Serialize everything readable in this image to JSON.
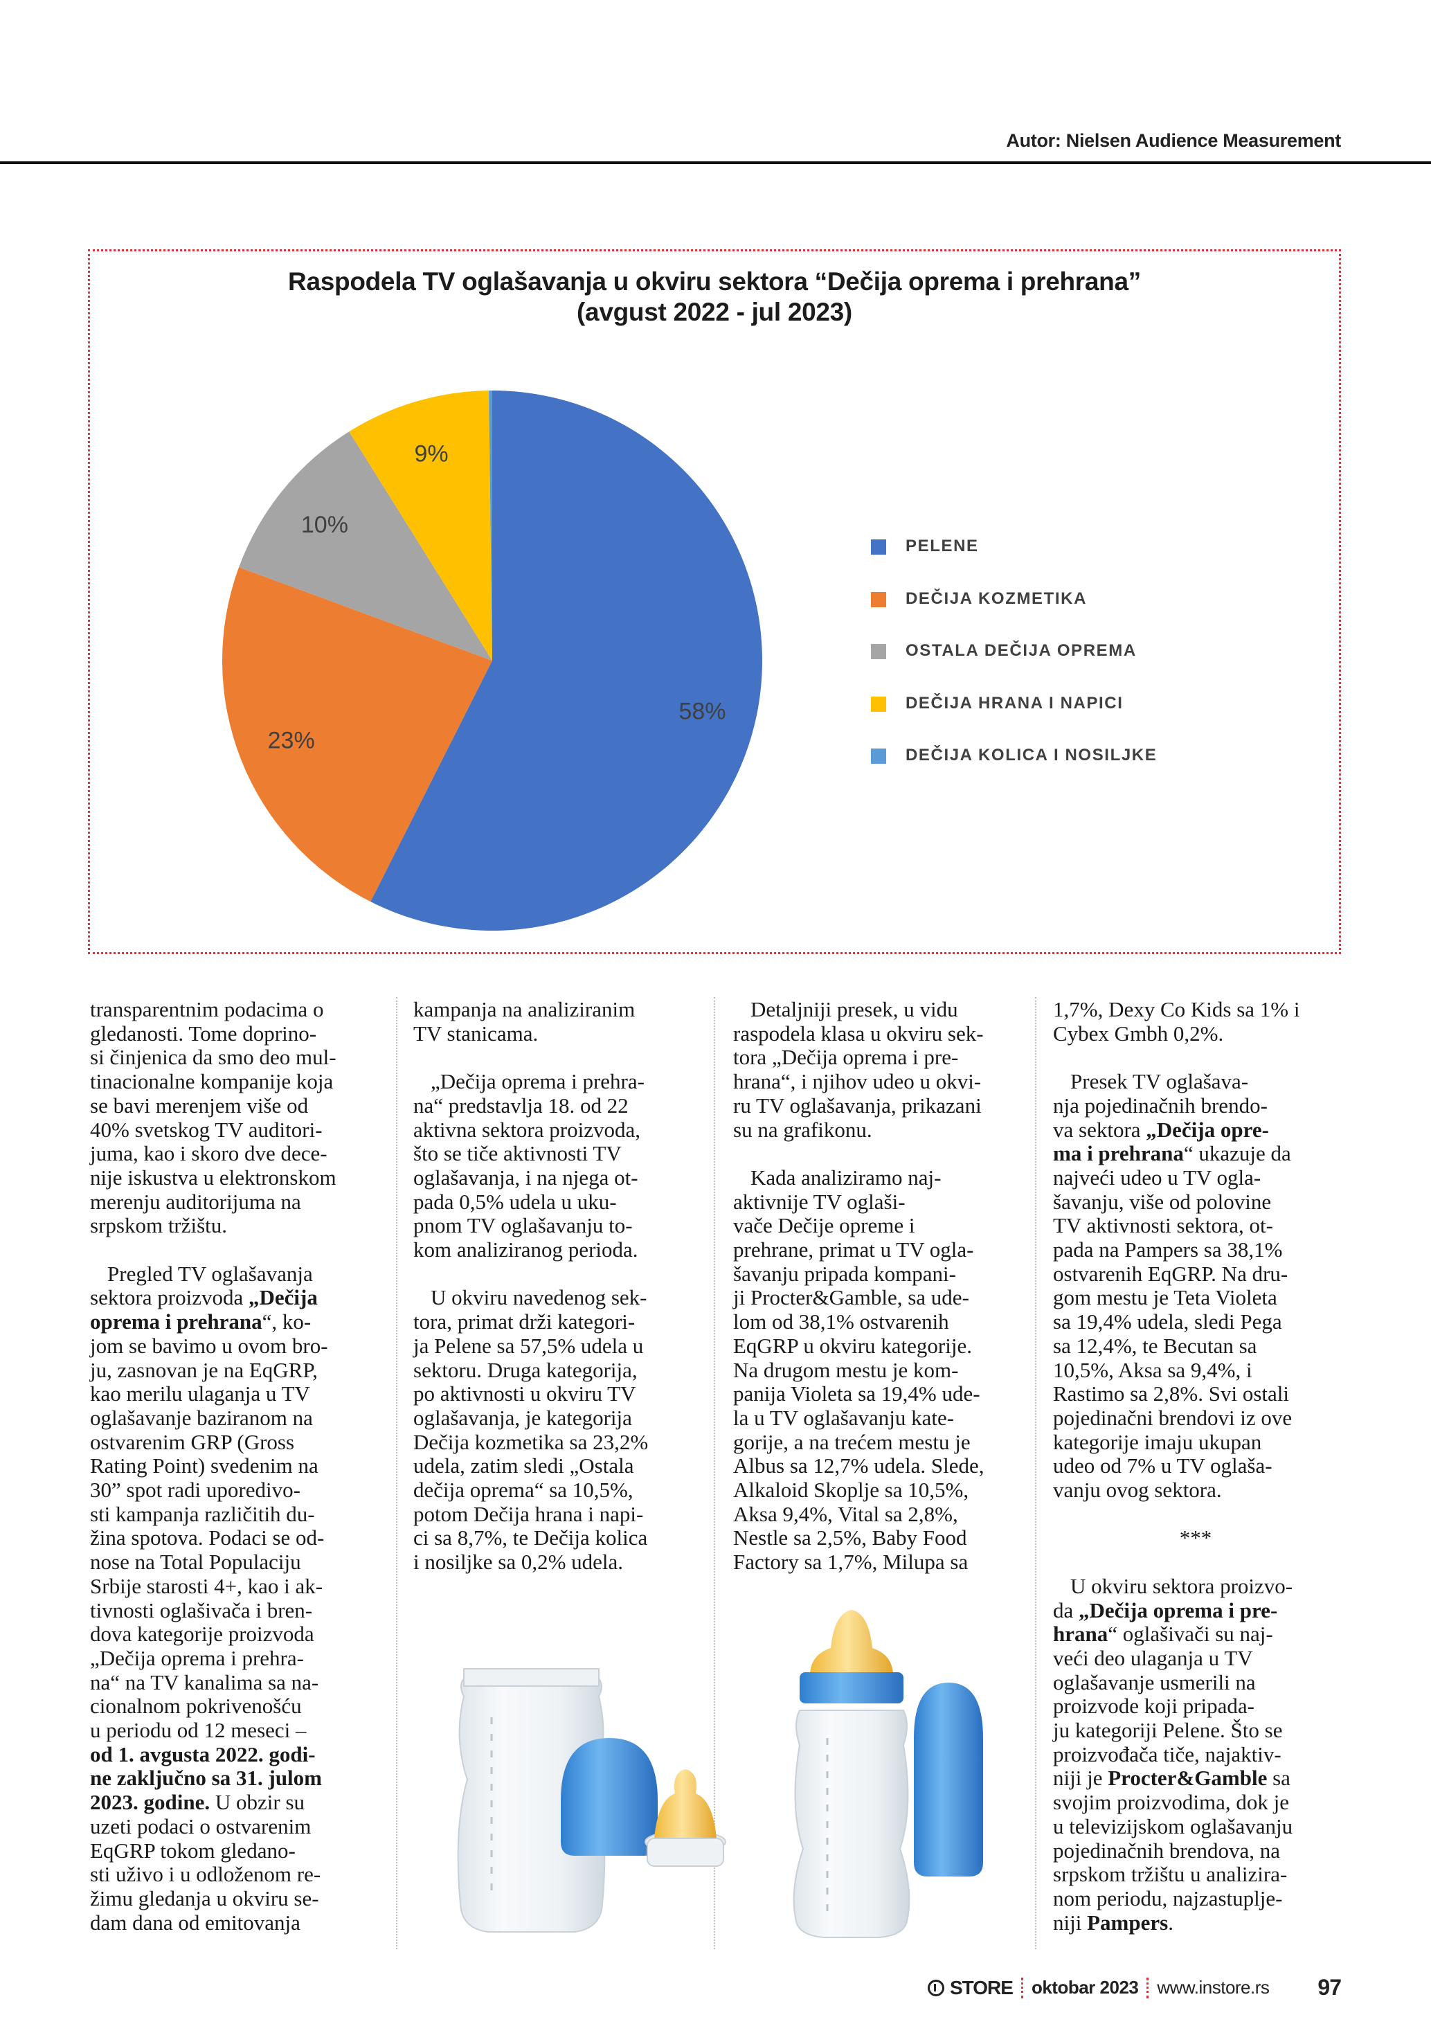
{
  "header": {
    "author": "Autor: Nielsen Audience Measurement"
  },
  "chart_data": {
    "type": "pie",
    "title": [
      "Raspodela TV oglašavanja u okviru sektora “Dečija oprema i prehrana”",
      "(avgust 2022 - jul 2023)"
    ],
    "categories": [
      "PELENE",
      "DEČIJA KOZMETIKA",
      "OSTALA DEČIJA OPREMA",
      "DEČIJA HRANA I NAPICI",
      "DEČIJA KOLICA I NOSILJKE"
    ],
    "values": [
      57.5,
      23.2,
      10.5,
      8.7,
      0.2
    ],
    "data_labels": [
      "58%",
      "23%",
      "10%",
      "9%",
      ""
    ],
    "colors": [
      "#4472C4",
      "#ED7D31",
      "#A5A5A5",
      "#FFC000",
      "#5B9BD5"
    ],
    "start_angle": "12 o'clock, clockwise",
    "legend_position": "right"
  },
  "article": {
    "columns": [
      {
        "paragraphs": [
          [
            {
              "t": "transparentnim podacima o\ngledanosti. Tome doprino-\nsi činjenica da smo deo mul-\ntinacionalne kompanije koja\nse bavi merenjem više od\n40% svetskog TV auditori-\njuma, kao i skoro dve dece-\nnije iskustva u elektronskom\nmerenju auditorijuma na\nsrpskom tržištu."
            }
          ],
          [
            {
              "t": "Pregled TV oglašavanja\nsektora proizvoda "
            },
            {
              "t": "„Dečija\nopremа i prehrana",
              "b": true
            },
            {
              "t": "“, ko-\njom se bavimo u ovom bro-\nju, zasnovan je na EqGRP,\nkao merilu ulaganja u TV\noglašavanje baziranom na\nostvarenim GRP (Gross\nRating Point) svedenim na\n30” spot radi uporedivo-\nsti kampanja različitih du-\nžina spotova. Podaci se od-\nnose na Total Populaciju\nSrbije starosti 4+, kao i ak-\ntivnosti oglašivača i bren-\ndova kategorije proizvoda\n„Dečija oprema i prehra-\nna“ na TV kanalima sa na-\ncionalnom pokrivenošću\nu periodu od 12 meseci –\n"
            },
            {
              "t": "od 1. avgusta 2022. godi-\nne zaključno sa 31. julom\n2023. godine.",
              "b": true
            },
            {
              "t": " U obzir su\nuzeti podaci o ostvarenim\nEqGRP tokom gledano-\nsti uživo i u odloženom re-\nžimu gledanja u okviru se-\ndam dana od emitovanja"
            }
          ]
        ]
      },
      {
        "paragraphs": [
          [
            {
              "t": "kampanja na analiziranim\nTV stanicama."
            }
          ],
          [
            {
              "t": "„Dečija oprema i prehra-\nna“ predstavlja 18. od 22\naktivna sektora proizvoda,\nšto se tiče aktivnosti TV\noglašavanja, i na njega ot-\npada 0,5% udela u uku-\npnom TV oglašavanju to-\nkom analiziranog perioda."
            }
          ],
          [
            {
              "t": "U okviru navedenog sek-\ntora, primat drži kategori-\nja Pelene sa 57,5% udela u\nsektoru. Druga kategorija,\npo aktivnosti u okviru TV\noglašavanja, je kategorija\nDečija kozmetika sa 23,2%\nudela, zatim sledi „Ostala\ndečija oprema“ sa 10,5%,\npotom Dečija hrana i napi-\nci sa 8,7%, te Dečija kolica\ni nosiljke sa 0,2% udela."
            }
          ]
        ]
      },
      {
        "paragraphs": [
          [
            {
              "t": "Detaljniji presek, u vidu\nraspodela klasa u okviru sek-\ntora „Dečija oprema i pre-\nhrana“, i njihov udeo u okvi-\nru TV oglašavanja, prikazani\nsu na grafikonu."
            }
          ],
          [
            {
              "t": "Kada analiziramo naj-\naktivnije TV oglaši-\nvače Dečije opreme i\nprehrane, primat u TV ogla-\nšavanju pripada kompani-\nji Procter&Gamble, sa ude-\nlom od 38,1% ostvarenih\nEqGRP u okviru kategorije.\nNa drugom mestu je kom-\npanija Violeta sa 19,4% ude-\nla u TV oglašavanju kate-\ngorije, a na trećem mestu je\nAlbus sa 12,7% udela. Slede,\nAlkaloid Skoplje sa 10,5%,\nAksa 9,4%, Vital sa 2,8%,\nNestle sa 2,5%, Baby Food\nFactory sa 1,7%, Milupa sa"
            }
          ]
        ]
      },
      {
        "paragraphs": [
          [
            {
              "t": "1,7%, Dexy Co Kids sa 1% i\nCybex Gmbh 0,2%."
            }
          ],
          [
            {
              "t": "Presek TV oglašava-\nnja pojedinačnih brendo-\nva sektora "
            },
            {
              "t": "„Dečija opre-\nma i prehrana",
              "b": true
            },
            {
              "t": "“ ukazuje da\nnajveći udeo u TV ogla-\nšavanju, više od polovine\nTV aktivnosti sektora, ot-\npada na Pampers sa 38,1%\nostvarenih EqGRP. Na dru-\ngom mestu je Teta Violeta\nsa 19,4% udela, sledi Pega\nsa 12,4%, te Becutan sa\n10,5%, Aksa sa 9,4%, i\nRastimo sa 2,8%. Svi ostali\npojedinačni brendovi iz ove\nkategorije imaju ukupan\nudeo od 7% u TV oglaša-\nvanju ovog sektora."
            }
          ],
          [
            {
              "t": "***"
            }
          ],
          [
            {
              "t": "U okviru sektora proizvo-\nda "
            },
            {
              "t": "„Dečija oprema i pre-\nhrana",
              "b": true
            },
            {
              "t": "“ oglašivači su naj-\nveći deo ulaganja u TV\noglašavanje usmerili na\nproizvode koji pripada-\nju kategoriji Pelene. Što se\nproizvođača tiče, najaktiv-\nniji je "
            },
            {
              "t": "Procter&Gamble",
              "b": true
            },
            {
              "t": " sa\nsvojim proizvodima, dok je\nu televizijskom oglašavanju\npojedinačnih brendova, na\nsrpskom tržištu u analizira-\nnom periodu, najzastuplje-\nniji "
            },
            {
              "t": "Pampers",
              "b": true
            },
            {
              "t": "."
            }
          ]
        ]
      }
    ]
  },
  "footer": {
    "brand": "STORE",
    "issue": "oktobar 2023",
    "url": "www.instore.rs",
    "page": "97"
  }
}
